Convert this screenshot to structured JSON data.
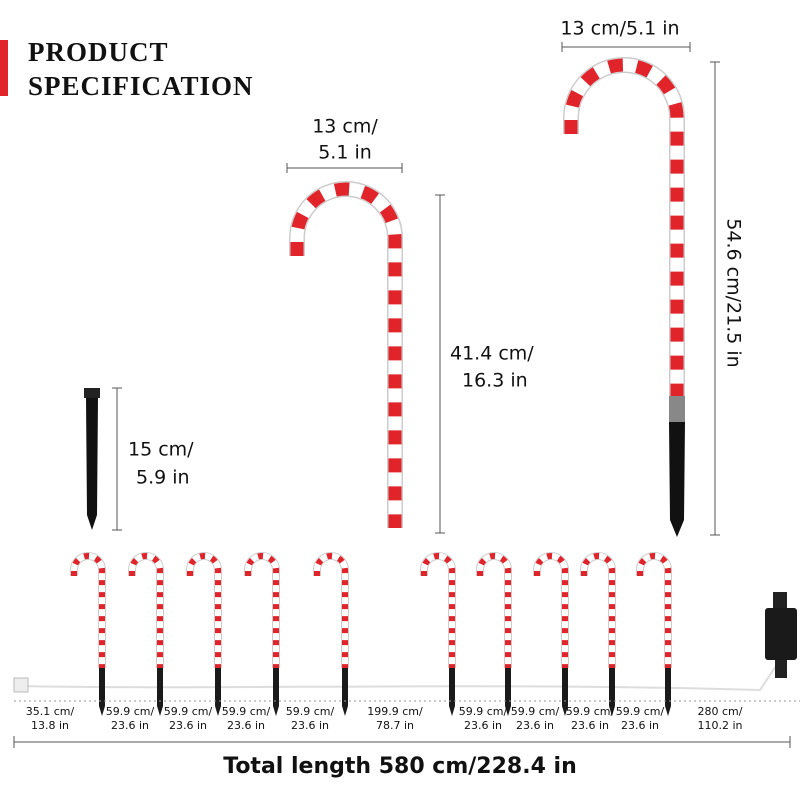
{
  "header": {
    "title_lines": [
      "PRODUCT",
      "SPECIFICATION"
    ]
  },
  "dimensions": {
    "stake_height": [
      "15 cm/",
      "5.9 in"
    ],
    "cane_width": [
      "13 cm/",
      "5.1 in"
    ],
    "cane_height": [
      "41.4 cm/",
      "16.3 in"
    ],
    "large_cane_width": "13 cm/5.1 in",
    "large_cane_height": "54.6 cm/21.5 in"
  },
  "spacing": [
    [
      "35.1 cm/",
      "13.8 in"
    ],
    [
      "59.9 cm/",
      "23.6 in"
    ],
    [
      "59.9 cm/",
      "23.6 in"
    ],
    [
      "59.9 cm/",
      "23.6 in"
    ],
    [
      "59.9 cm/",
      "23.6 in"
    ],
    [
      "199.9 cm/",
      "78.7 in"
    ],
    [
      "59.9 cm/",
      "23.6 in"
    ],
    [
      "59.9 cm/",
      "23.6 in"
    ],
    [
      "59.9 cm/",
      "23.6 in"
    ],
    [
      "59.9 cm/",
      "23.6 in"
    ],
    [
      "280 cm/",
      "110.2 in"
    ]
  ],
  "total_length": "Total length 580 cm/228.4 in"
}
